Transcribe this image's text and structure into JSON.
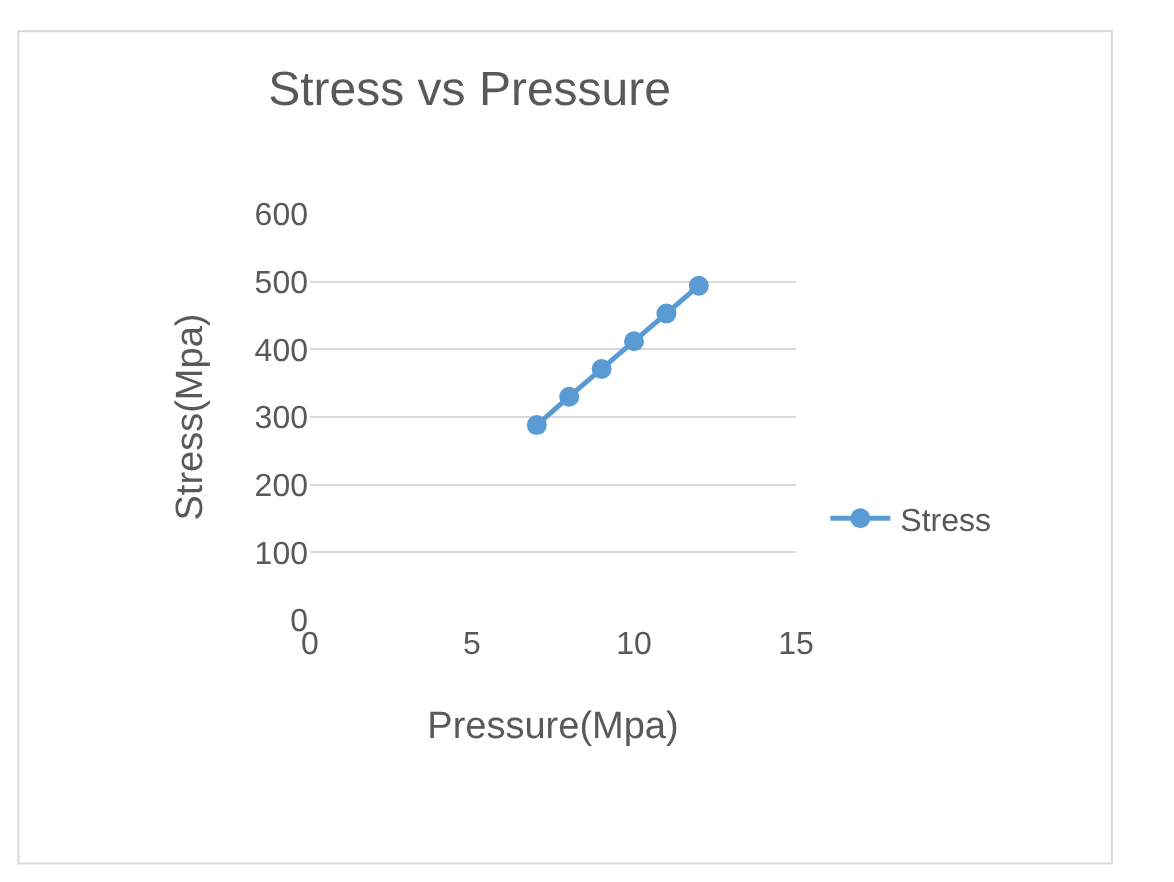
{
  "chart_data": {
    "type": "line",
    "title": "Stress vs Pressure",
    "xlabel": "Pressure(Mpa)",
    "ylabel": "Stress(Mpa)",
    "x": [
      7,
      8,
      9,
      10,
      11,
      12
    ],
    "series": [
      {
        "name": "Stress",
        "color": "#5b9bd5",
        "values": [
          288,
          330,
          371,
          412,
          453,
          494
        ]
      }
    ],
    "xlim": [
      0,
      15
    ],
    "xticks": [
      0,
      5,
      10,
      15
    ],
    "ylim": [
      0,
      600
    ],
    "yticks": [
      0,
      100,
      200,
      300,
      400,
      500,
      600
    ],
    "grid": "y",
    "legend": "right",
    "marker": "circle",
    "line_style": "solid"
  }
}
